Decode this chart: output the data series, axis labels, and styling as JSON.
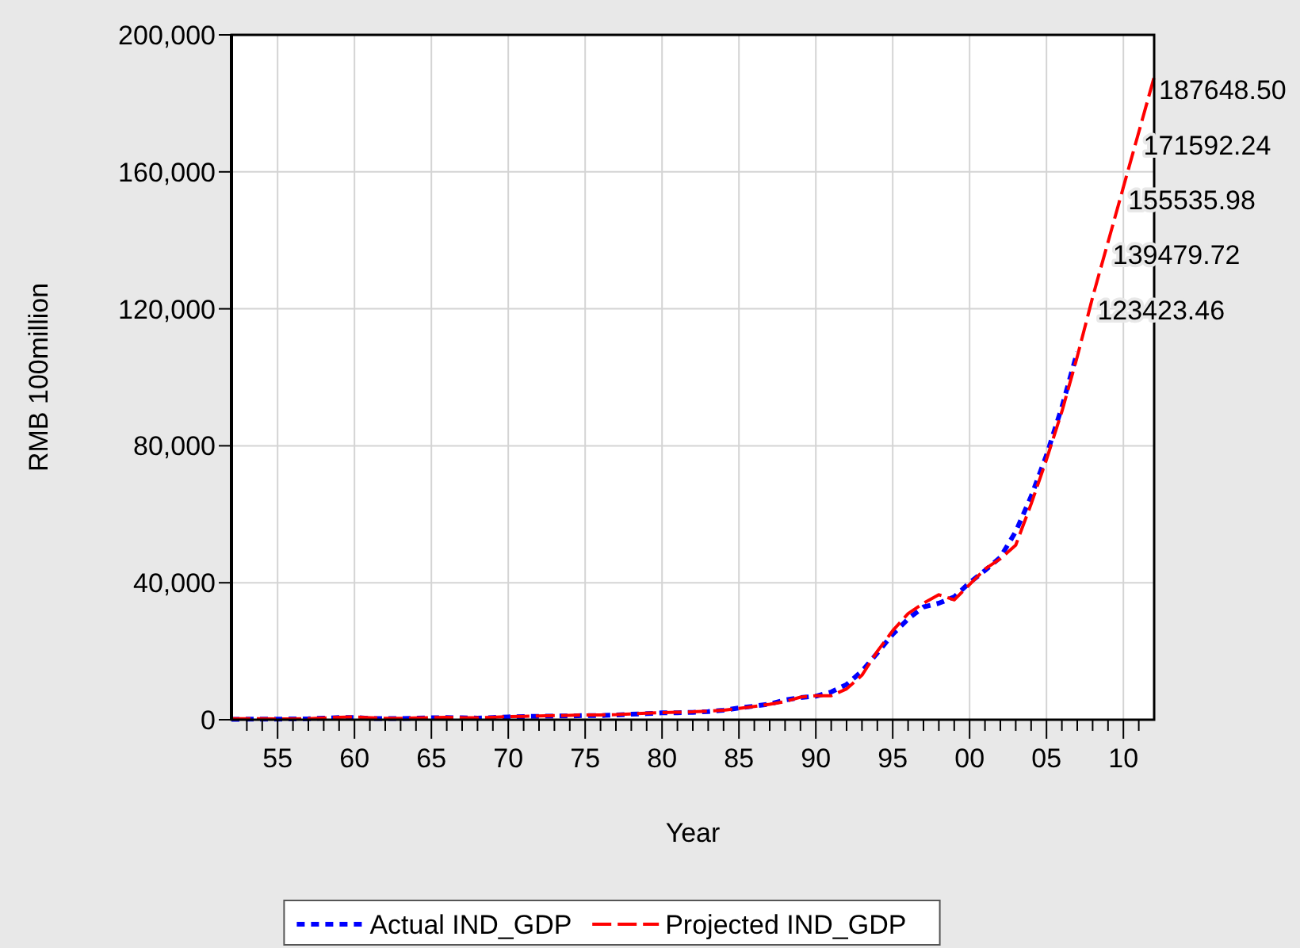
{
  "chart_data": {
    "type": "line",
    "xlabel": "Year",
    "ylabel": "RMB 100million",
    "xlim": [
      1952,
      2012
    ],
    "xticks": [
      {
        "value": 1953,
        "label": null
      },
      {
        "value": 1954,
        "label": null
      },
      {
        "value": 1955,
        "label": "55"
      },
      {
        "value": 1956,
        "label": null
      },
      {
        "value": 1957,
        "label": null
      },
      {
        "value": 1958,
        "label": null
      },
      {
        "value": 1959,
        "label": null
      },
      {
        "value": 1960,
        "label": "60"
      },
      {
        "value": 1961,
        "label": null
      },
      {
        "value": 1962,
        "label": null
      },
      {
        "value": 1963,
        "label": null
      },
      {
        "value": 1964,
        "label": null
      },
      {
        "value": 1965,
        "label": "65"
      },
      {
        "value": 1966,
        "label": null
      },
      {
        "value": 1967,
        "label": null
      },
      {
        "value": 1968,
        "label": null
      },
      {
        "value": 1969,
        "label": null
      },
      {
        "value": 1970,
        "label": "70"
      },
      {
        "value": 1971,
        "label": null
      },
      {
        "value": 1972,
        "label": null
      },
      {
        "value": 1973,
        "label": null
      },
      {
        "value": 1974,
        "label": null
      },
      {
        "value": 1975,
        "label": "75"
      },
      {
        "value": 1976,
        "label": null
      },
      {
        "value": 1977,
        "label": null
      },
      {
        "value": 1978,
        "label": null
      },
      {
        "value": 1979,
        "label": null
      },
      {
        "value": 1980,
        "label": "80"
      },
      {
        "value": 1981,
        "label": null
      },
      {
        "value": 1982,
        "label": null
      },
      {
        "value": 1983,
        "label": null
      },
      {
        "value": 1984,
        "label": null
      },
      {
        "value": 1985,
        "label": "85"
      },
      {
        "value": 1986,
        "label": null
      },
      {
        "value": 1987,
        "label": null
      },
      {
        "value": 1988,
        "label": null
      },
      {
        "value": 1989,
        "label": null
      },
      {
        "value": 1990,
        "label": "90"
      },
      {
        "value": 1991,
        "label": null
      },
      {
        "value": 1992,
        "label": null
      },
      {
        "value": 1993,
        "label": null
      },
      {
        "value": 1994,
        "label": null
      },
      {
        "value": 1995,
        "label": "95"
      },
      {
        "value": 1996,
        "label": null
      },
      {
        "value": 1997,
        "label": null
      },
      {
        "value": 1998,
        "label": null
      },
      {
        "value": 1999,
        "label": null
      },
      {
        "value": 2000,
        "label": "00"
      },
      {
        "value": 2001,
        "label": null
      },
      {
        "value": 2002,
        "label": null
      },
      {
        "value": 2003,
        "label": null
      },
      {
        "value": 2004,
        "label": null
      },
      {
        "value": 2005,
        "label": "05"
      },
      {
        "value": 2006,
        "label": null
      },
      {
        "value": 2007,
        "label": null
      },
      {
        "value": 2008,
        "label": null
      },
      {
        "value": 2009,
        "label": null
      },
      {
        "value": 2010,
        "label": "10"
      },
      {
        "value": 2011,
        "label": null
      }
    ],
    "ylim": [
      0,
      200000
    ],
    "yticks": [
      {
        "value": 0,
        "label": "0"
      },
      {
        "value": 40000,
        "label": "40,000"
      },
      {
        "value": 80000,
        "label": "80,000"
      },
      {
        "value": 120000,
        "label": "120,000"
      },
      {
        "value": 160000,
        "label": "160,000"
      },
      {
        "value": 200000,
        "label": "200,000"
      }
    ],
    "grid": true,
    "legend": "bottom",
    "series": [
      {
        "name": "Actual IND_GDP",
        "color": "#0000ff",
        "line_style": "dotted",
        "x": [
          1952,
          1953,
          1954,
          1955,
          1956,
          1957,
          1958,
          1959,
          1960,
          1961,
          1962,
          1963,
          1964,
          1965,
          1966,
          1967,
          1968,
          1969,
          1970,
          1971,
          1972,
          1973,
          1974,
          1975,
          1976,
          1977,
          1978,
          1979,
          1980,
          1981,
          1982,
          1983,
          1984,
          1985,
          1986,
          1987,
          1988,
          1989,
          1990,
          1991,
          1992,
          1993,
          1994,
          1995,
          1996,
          1997,
          1998,
          1999,
          2000,
          2001,
          2002,
          2003,
          2004,
          2005,
          2006,
          2007
        ],
        "values": [
          120,
          160,
          180,
          190,
          220,
          270,
          480,
          620,
          650,
          390,
          330,
          360,
          460,
          550,
          650,
          550,
          490,
          650,
          830,
          930,
          990,
          1070,
          1080,
          1240,
          1210,
          1370,
          1610,
          1770,
          2000,
          2050,
          2160,
          2380,
          2790,
          3450,
          3970,
          4590,
          5780,
          6480,
          6860,
          8090,
          10280,
          14190,
          19480,
          24950,
          29450,
          32920,
          34020,
          35860,
          40030,
          43580,
          47430,
          54950,
          65210,
          77230,
          91310,
          107370
        ]
      },
      {
        "name": "Projected IND_GDP",
        "color": "#ff0000",
        "line_style": "dashed",
        "x": [
          1952,
          1953,
          1954,
          1955,
          1956,
          1957,
          1958,
          1959,
          1960,
          1961,
          1962,
          1963,
          1964,
          1965,
          1966,
          1967,
          1968,
          1969,
          1970,
          1971,
          1972,
          1973,
          1974,
          1975,
          1976,
          1977,
          1978,
          1979,
          1980,
          1981,
          1982,
          1983,
          1984,
          1985,
          1986,
          1987,
          1988,
          1989,
          1990,
          1991,
          1992,
          1993,
          1994,
          1995,
          1996,
          1997,
          1998,
          1999,
          2000,
          2001,
          2002,
          2003,
          2004,
          2005,
          2006,
          2007,
          2008,
          2009,
          2010,
          2011,
          2012
        ],
        "values": [
          300,
          300,
          300,
          250,
          250,
          300,
          500,
          700,
          800,
          600,
          400,
          400,
          500,
          600,
          700,
          600,
          550,
          700,
          900,
          1000,
          1100,
          1200,
          1300,
          1400,
          1400,
          1500,
          1700,
          1900,
          2100,
          2200,
          2300,
          2500,
          2800,
          3300,
          3900,
          4500,
          5300,
          6600,
          7000,
          7000,
          9000,
          13000,
          20000,
          26000,
          31000,
          34000,
          36500,
          35000,
          39500,
          44000,
          47000,
          51000,
          63000,
          76000,
          90000,
          106000,
          123423.46,
          139479.72,
          155535.98,
          171592.24,
          187648.5
        ]
      }
    ],
    "annotations": [
      {
        "text": "187648.50",
        "x": 2012,
        "y": 187648.5
      },
      {
        "text": "171592.24",
        "x": 2011,
        "y": 171592.24
      },
      {
        "text": "155535.98",
        "x": 2010,
        "y": 155535.98
      },
      {
        "text": "139479.72",
        "x": 2009,
        "y": 139479.72
      },
      {
        "text": "123423.46",
        "x": 2008,
        "y": 123423.46
      }
    ]
  }
}
